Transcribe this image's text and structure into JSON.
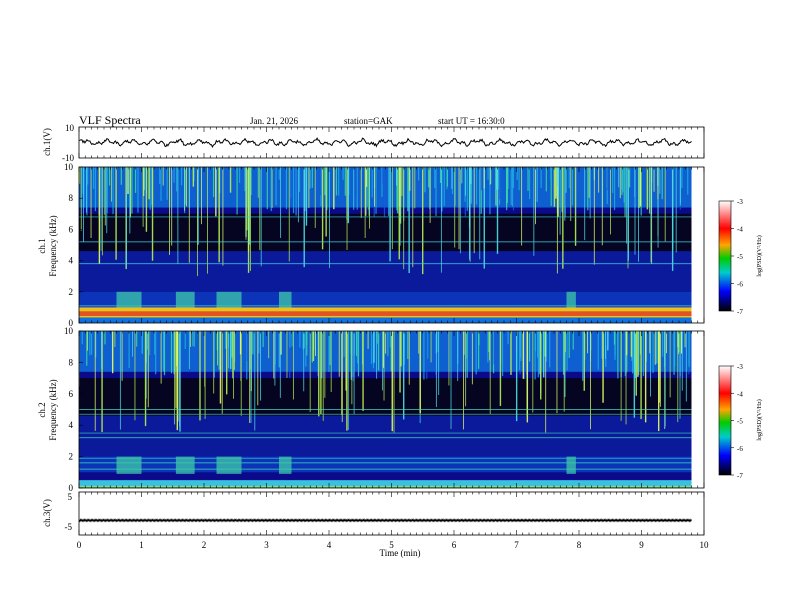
{
  "header": {
    "title": "VLF  Spectra",
    "date": "Jan. 21, 2026",
    "station": "station=GAK",
    "start": "start  UT  =   16:30:0"
  },
  "chart_data": [
    {
      "type": "line",
      "panel": "ch1-waveform",
      "ylabel": "ch.1(V)",
      "yticks": [
        "10",
        "-10"
      ],
      "ylim": [
        -10,
        10
      ],
      "xlim": [
        0,
        10
      ],
      "data_extent_min": 9.8,
      "series": [
        {
          "color": "#000000"
        }
      ]
    },
    {
      "type": "heatmap",
      "panel": "ch1-spectrogram",
      "ylabel_top": "ch.1",
      "ylabel": "Frequency  (kHz)",
      "yticks": [
        "0",
        "2",
        "4",
        "6",
        "8",
        "10"
      ],
      "ylim": [
        0,
        10
      ],
      "xlim": [
        0,
        10
      ],
      "colorbar": {
        "label": "log(PSD)(V²/Hz)",
        "ticks": [
          "-3",
          "-4",
          "-5",
          "-6",
          "-7"
        ],
        "range": [
          -7,
          -3
        ],
        "colors": [
          "#ffffff",
          "#ff0000",
          "#ffa500",
          "#00cc00",
          "#00cccc",
          "#0000ff",
          "#000000"
        ]
      }
    },
    {
      "type": "heatmap",
      "panel": "ch2-spectrogram",
      "ylabel_top": "ch.2",
      "ylabel": "Frequency  (kHz)",
      "yticks": [
        "0",
        "2",
        "4",
        "6",
        "8",
        "10"
      ],
      "ylim": [
        0,
        10
      ],
      "xlim": [
        0,
        10
      ],
      "colorbar": {
        "label": "log(PSD)(V²/Hz)",
        "ticks": [
          "-3",
          "-4",
          "-5",
          "-6",
          "-7"
        ],
        "range": [
          -7,
          -3
        ],
        "colors": [
          "#ffffff",
          "#ff0000",
          "#ffa500",
          "#00cc00",
          "#00cccc",
          "#0000ff",
          "#000000"
        ]
      }
    },
    {
      "type": "line",
      "panel": "ch3-waveform",
      "ylabel": "ch.3(V)",
      "yticks": [
        "5",
        "-5"
      ],
      "ylim": [
        -5,
        5
      ],
      "xlim": [
        0,
        10
      ],
      "series": [
        {
          "color": "#000000"
        }
      ]
    }
  ],
  "xaxis": {
    "label": "Time  (min)",
    "ticks": [
      "0",
      "1",
      "2",
      "3",
      "4",
      "5",
      "6",
      "7",
      "8",
      "9",
      "10"
    ]
  }
}
